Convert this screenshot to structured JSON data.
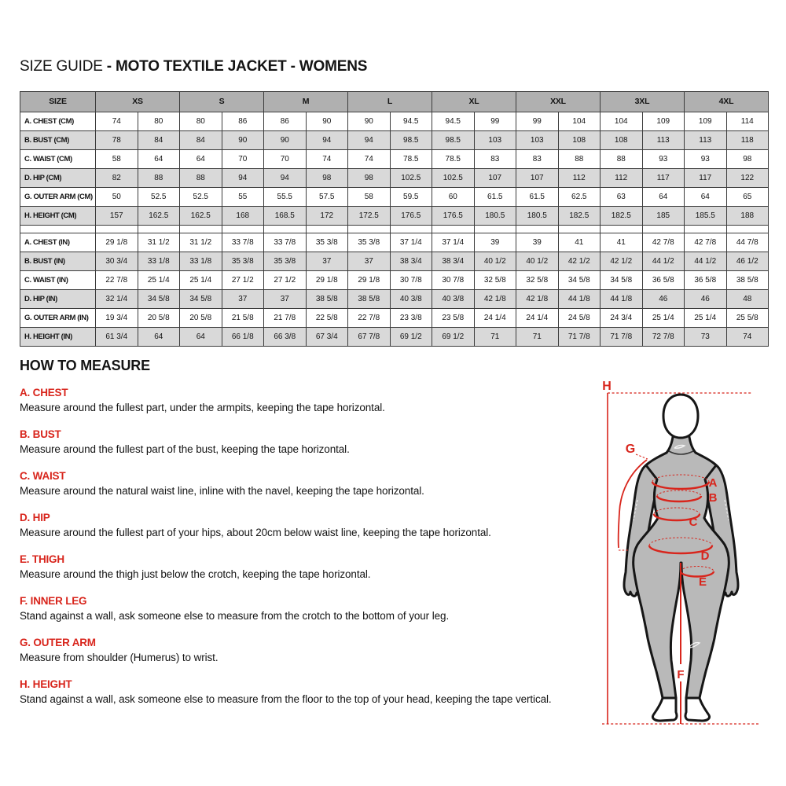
{
  "page": {
    "title_prefix": "SIZE GUIDE ",
    "title_bold": "- MOTO TEXTILE JACKET - WOMENS"
  },
  "size_table": {
    "corner_label": "SIZE",
    "sizes": [
      "XS",
      "S",
      "M",
      "L",
      "XL",
      "XXL",
      "3XL",
      "4XL"
    ],
    "rows_cm": [
      {
        "label": "A. CHEST (CM)",
        "values": [
          "74",
          "80",
          "80",
          "86",
          "86",
          "90",
          "90",
          "94.5",
          "94.5",
          "99",
          "99",
          "104",
          "104",
          "109",
          "109",
          "114"
        ]
      },
      {
        "label": "B. BUST (CM)",
        "values": [
          "78",
          "84",
          "84",
          "90",
          "90",
          "94",
          "94",
          "98.5",
          "98.5",
          "103",
          "103",
          "108",
          "108",
          "113",
          "113",
          "118"
        ]
      },
      {
        "label": "C. WAIST (CM)",
        "values": [
          "58",
          "64",
          "64",
          "70",
          "70",
          "74",
          "74",
          "78.5",
          "78.5",
          "83",
          "83",
          "88",
          "88",
          "93",
          "93",
          "98"
        ]
      },
      {
        "label": "D. HIP (CM)",
        "values": [
          "82",
          "88",
          "88",
          "94",
          "94",
          "98",
          "98",
          "102.5",
          "102.5",
          "107",
          "107",
          "112",
          "112",
          "117",
          "117",
          "122"
        ]
      },
      {
        "label": "G. OUTER ARM (CM)",
        "values": [
          "50",
          "52.5",
          "52.5",
          "55",
          "55.5",
          "57.5",
          "58",
          "59.5",
          "60",
          "61.5",
          "61.5",
          "62.5",
          "63",
          "64",
          "64",
          "65"
        ]
      },
      {
        "label": "H. HEIGHT (CM)",
        "values": [
          "157",
          "162.5",
          "162.5",
          "168",
          "168.5",
          "172",
          "172.5",
          "176.5",
          "176.5",
          "180.5",
          "180.5",
          "182.5",
          "182.5",
          "185",
          "185.5",
          "188"
        ]
      }
    ],
    "rows_in": [
      {
        "label": "A. CHEST (IN)",
        "values": [
          "29 1/8",
          "31 1/2",
          "31 1/2",
          "33 7/8",
          "33 7/8",
          "35 3/8",
          "35 3/8",
          "37 1/4",
          "37 1/4",
          "39",
          "39",
          "41",
          "41",
          "42 7/8",
          "42 7/8",
          "44 7/8"
        ]
      },
      {
        "label": "B. BUST (IN)",
        "values": [
          "30 3/4",
          "33 1/8",
          "33 1/8",
          "35 3/8",
          "35 3/8",
          "37",
          "37",
          "38 3/4",
          "38 3/4",
          "40 1/2",
          "40 1/2",
          "42 1/2",
          "42 1/2",
          "44 1/2",
          "44 1/2",
          "46 1/2"
        ]
      },
      {
        "label": "C. WAIST (IN)",
        "values": [
          "22 7/8",
          "25 1/4",
          "25 1/4",
          "27 1/2",
          "27 1/2",
          "29 1/8",
          "29 1/8",
          "30 7/8",
          "30 7/8",
          "32 5/8",
          "32 5/8",
          "34 5/8",
          "34 5/8",
          "36 5/8",
          "36 5/8",
          "38 5/8"
        ]
      },
      {
        "label": "D. HIP (IN)",
        "values": [
          "32 1/4",
          "34 5/8",
          "34 5/8",
          "37",
          "37",
          "38 5/8",
          "38 5/8",
          "40 3/8",
          "40 3/8",
          "42 1/8",
          "42 1/8",
          "44 1/8",
          "44 1/8",
          "46",
          "46",
          "48"
        ]
      },
      {
        "label": "G. OUTER ARM (IN)",
        "values": [
          "19 3/4",
          "20 5/8",
          "20 5/8",
          "21 5/8",
          "21 7/8",
          "22 5/8",
          "22 7/8",
          "23 3/8",
          "23 5/8",
          "24 1/4",
          "24 1/4",
          "24 5/8",
          "24 3/4",
          "25 1/4",
          "25 1/4",
          "25 5/8"
        ]
      },
      {
        "label": "H. HEIGHT (IN)",
        "values": [
          "61 3/4",
          "64",
          "64",
          "66 1/8",
          "66 3/8",
          "67 3/4",
          "67 7/8",
          "69 1/2",
          "69 1/2",
          "71",
          "71",
          "71 7/8",
          "71 7/8",
          "72 7/8",
          "73",
          "74"
        ]
      }
    ]
  },
  "how_to_measure": {
    "heading": "HOW TO MEASURE",
    "sections": [
      {
        "label": "A. CHEST",
        "text": "Measure around the fullest part, under the armpits, keeping the tape horizontal."
      },
      {
        "label": "B. BUST",
        "text": "Measure around the fullest part of the bust, keeping the tape horizontal."
      },
      {
        "label": "C. WAIST",
        "text": "Measure around the natural waist line, inline with the navel, keeping the tape horizontal."
      },
      {
        "label": "D. HIP",
        "text": "Measure around the fullest part of your hips, about 20cm below waist line, keeping the tape horizontal."
      },
      {
        "label": "E. THIGH",
        "text": "Measure around the thigh just below the crotch, keeping the tape horizontal."
      },
      {
        "label": "F. INNER LEG",
        "text": "Stand against a wall, ask someone else to measure from the crotch to the bottom of your leg."
      },
      {
        "label": "G. OUTER ARM",
        "text": "Measure from shoulder (Humerus) to wrist."
      },
      {
        "label": "H. HEIGHT",
        "text": "Stand against a wall, ask someone else to measure from the floor to the top of your head, keeping the tape vertical."
      }
    ]
  },
  "figure": {
    "labels": {
      "a": "A",
      "b": "B",
      "c": "C",
      "d": "D",
      "e": "E",
      "f": "F",
      "g": "G",
      "h": "H"
    }
  },
  "colors": {
    "accent_red": "#d8251c",
    "table_header_gray": "#b0b0b0",
    "table_alt_row_gray": "#d9d9d9",
    "figure_body_gray": "#b9b9b9",
    "border_dark": "#3c3c3c"
  }
}
